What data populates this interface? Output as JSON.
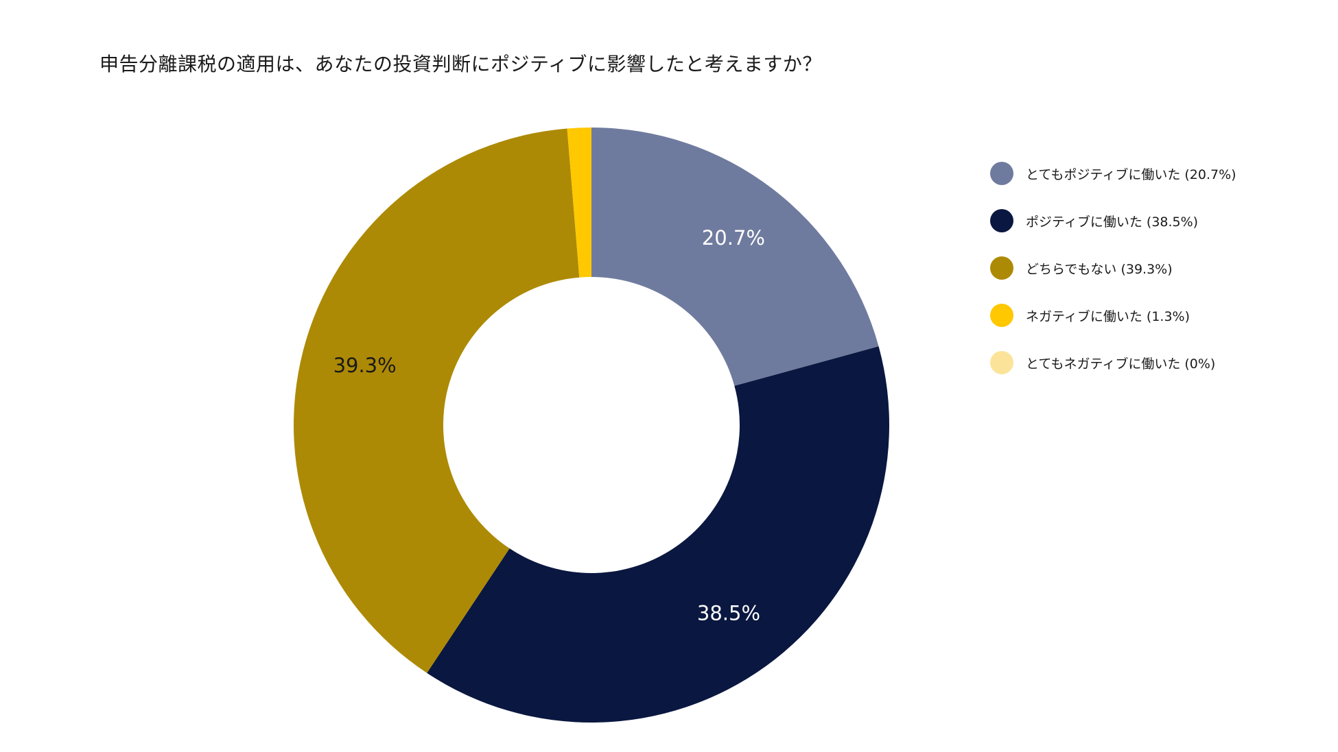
{
  "chart_data": {
    "type": "pie",
    "donut": true,
    "title": "申告分離課税の適用は、あなたの投資判断にポジティブに影響したと考えますか？",
    "series": [
      {
        "name": "とてもポジティブに働いた",
        "value": 20.7,
        "label": "20.7%",
        "legend": "とてもポジティブに働いた (20.7%)",
        "color": "#6f7b9e",
        "label_color": "#ffffff"
      },
      {
        "name": "ポジティブに働いた",
        "value": 38.5,
        "label": "38.5%",
        "legend": "ポジティブに働いた (38.5%)",
        "color": "#0a1740",
        "label_color": "#ffffff"
      },
      {
        "name": "どちらでもない",
        "value": 39.3,
        "label": "39.3%",
        "legend": "どちらでもない (39.3%)",
        "color": "#ad8a05",
        "label_color": "#1a1a1a"
      },
      {
        "name": "ネガティブに働いた",
        "value": 1.3,
        "label": "",
        "legend": "ネガティブに働いた (1.3%)",
        "color": "#ffc801",
        "label_color": "#1a1a1a"
      },
      {
        "name": "とてもネガティブに働いた",
        "value": 0,
        "label": "",
        "legend": "とてもネガティブに働いた (0%)",
        "color": "#fbe49a",
        "label_color": "#1a1a1a"
      }
    ],
    "legend_position": "right"
  }
}
